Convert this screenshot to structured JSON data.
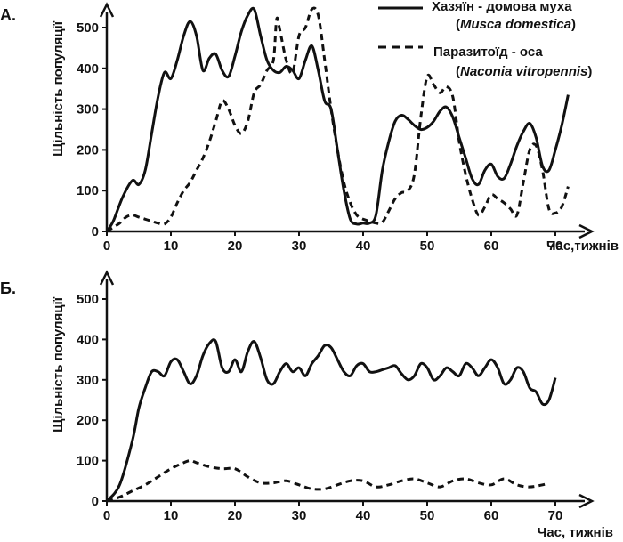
{
  "legend": {
    "host_line1": "Хазяїн - домова муха",
    "host_line2_open": "(",
    "host_line2_italic": "Musca domestica",
    "host_line2_close": ")",
    "parasite_line1": "Паразитоїд - оса",
    "parasite_line2_open": "(",
    "parasite_line2_italic": "Naconia vitropennis",
    "parasite_line2_close": ")"
  },
  "chart_data": [
    {
      "type": "line",
      "panel_label": "А.",
      "xlabel": "Час,тижнів",
      "ylabel": "Щільність популяції",
      "xlim": [
        0,
        73
      ],
      "ylim": [
        0,
        560
      ],
      "xticks": [
        0,
        10,
        20,
        30,
        40,
        50,
        60,
        70
      ],
      "yticks": [
        0,
        100,
        200,
        300,
        400,
        500
      ],
      "series": [
        {
          "name": "Хазяїн - домова муха (Musca domestica)",
          "style": "solid",
          "color": "#111111",
          "x": [
            0,
            1,
            2.5,
            4,
            5,
            6,
            7,
            8,
            9,
            10,
            11,
            12,
            13,
            14,
            15,
            16,
            17,
            18,
            19,
            20,
            21,
            22,
            23,
            24,
            25,
            26,
            27,
            28,
            29,
            30,
            31,
            32,
            33,
            34,
            35,
            36,
            37,
            38,
            39,
            40,
            41,
            42,
            43,
            44,
            45,
            46,
            47,
            48,
            49,
            50,
            51,
            52,
            53,
            54,
            55,
            56,
            57,
            58,
            59,
            60,
            61,
            62,
            63,
            64,
            65,
            66,
            67,
            68,
            69,
            70,
            71,
            72
          ],
          "y": [
            0,
            25,
            85,
            125,
            115,
            150,
            240,
            330,
            390,
            375,
            420,
            480,
            515,
            480,
            395,
            425,
            435,
            395,
            380,
            430,
            490,
            530,
            545,
            480,
            420,
            395,
            390,
            405,
            395,
            375,
            420,
            455,
            395,
            320,
            300,
            200,
            100,
            30,
            18,
            20,
            20,
            40,
            150,
            220,
            270,
            285,
            275,
            260,
            250,
            255,
            270,
            295,
            305,
            280,
            230,
            180,
            130,
            115,
            150,
            165,
            135,
            130,
            165,
            210,
            245,
            265,
            230,
            160,
            150,
            200,
            260,
            335
          ]
        },
        {
          "name": "Паразитоїд - оса (Naconia vitropennis)",
          "style": "dashed",
          "color": "#111111",
          "x": [
            0,
            1,
            2,
            3,
            4,
            5,
            6,
            7,
            8,
            9,
            10,
            11,
            12,
            13,
            14,
            15,
            16,
            17,
            18,
            19,
            20,
            21,
            22,
            23,
            24,
            25,
            26,
            26.5,
            27,
            28,
            29,
            30,
            31,
            32,
            33,
            34,
            35,
            36,
            37,
            38,
            39,
            40,
            41,
            42,
            43,
            44,
            45,
            46,
            47,
            48,
            49,
            50,
            51,
            52,
            53,
            54,
            55,
            56,
            57,
            58,
            59,
            60,
            61,
            62,
            63,
            64,
            65,
            66,
            67,
            68,
            69,
            70,
            71,
            72
          ],
          "y": [
            0,
            10,
            20,
            35,
            40,
            35,
            30,
            25,
            20,
            18,
            35,
            70,
            100,
            120,
            150,
            180,
            220,
            270,
            320,
            300,
            260,
            240,
            270,
            340,
            360,
            395,
            420,
            520,
            495,
            420,
            390,
            480,
            500,
            545,
            530,
            420,
            300,
            200,
            120,
            70,
            40,
            30,
            25,
            20,
            22,
            50,
            80,
            95,
            100,
            140,
            280,
            380,
            360,
            340,
            355,
            330,
            220,
            140,
            80,
            40,
            60,
            90,
            80,
            70,
            55,
            40,
            120,
            200,
            210,
            150,
            55,
            45,
            60,
            110
          ]
        }
      ]
    },
    {
      "type": "line",
      "panel_label": "Б.",
      "xlabel": "Час, тижнів",
      "ylabel": "Щільність популяції",
      "xlim": [
        0,
        73
      ],
      "ylim": [
        0,
        560
      ],
      "xticks": [
        0,
        10,
        20,
        30,
        40,
        50,
        60,
        70
      ],
      "yticks": [
        0,
        100,
        200,
        300,
        400,
        500
      ],
      "series": [
        {
          "style": "solid",
          "color": "#111111",
          "x": [
            0,
            2,
            4,
            5,
            6,
            7,
            8,
            9,
            10,
            11,
            12,
            13,
            14,
            15,
            16,
            17,
            18,
            19,
            20,
            21,
            22,
            23,
            24,
            25,
            26,
            27,
            28,
            29,
            30,
            31,
            32,
            33,
            34,
            35,
            36,
            37,
            38,
            39,
            40,
            41,
            42,
            43,
            44,
            45,
            46,
            47,
            48,
            49,
            50,
            51,
            52,
            53,
            54,
            55,
            56,
            57,
            58,
            59,
            60,
            61,
            62,
            63,
            64,
            65,
            66,
            67,
            68,
            69,
            70
          ],
          "y": [
            0,
            40,
            150,
            230,
            280,
            320,
            320,
            310,
            345,
            350,
            320,
            290,
            310,
            360,
            390,
            395,
            330,
            320,
            350,
            320,
            370,
            395,
            355,
            300,
            290,
            320,
            340,
            320,
            330,
            310,
            340,
            360,
            385,
            380,
            350,
            320,
            310,
            335,
            340,
            320,
            320,
            325,
            330,
            335,
            315,
            300,
            310,
            340,
            330,
            300,
            310,
            330,
            320,
            310,
            340,
            330,
            310,
            330,
            350,
            330,
            290,
            300,
            330,
            320,
            280,
            270,
            240,
            250,
            305
          ]
        },
        {
          "style": "dashed",
          "color": "#111111",
          "x": [
            0,
            2,
            4,
            6,
            8,
            10,
            12,
            13,
            14,
            16,
            18,
            20,
            22,
            24,
            26,
            28,
            30,
            32,
            34,
            36,
            38,
            40,
            42,
            44,
            46,
            48,
            50,
            52,
            54,
            56,
            58,
            60,
            62,
            64,
            66,
            68,
            69
          ],
          "y": [
            0,
            10,
            25,
            40,
            60,
            80,
            95,
            100,
            95,
            85,
            80,
            80,
            60,
            45,
            45,
            50,
            40,
            30,
            30,
            40,
            50,
            50,
            35,
            40,
            50,
            55,
            45,
            35,
            50,
            55,
            45,
            40,
            55,
            40,
            35,
            40,
            45
          ]
        }
      ]
    }
  ]
}
